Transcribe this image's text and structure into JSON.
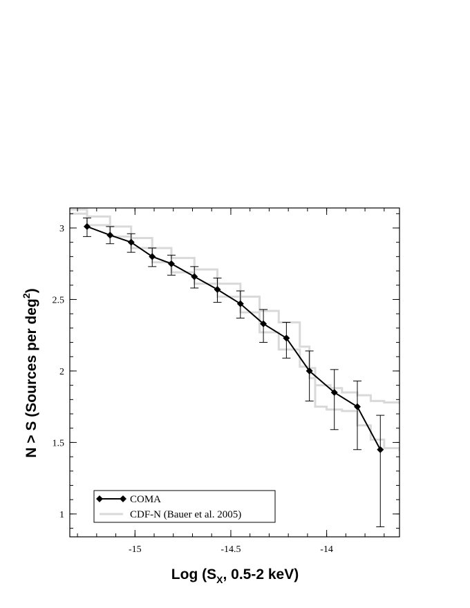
{
  "chart_data": {
    "type": "line",
    "xlabel": "Log (S",
    "xlabel_sub": "X",
    "xlabel_rest": ", 0.5-2 keV)",
    "ylabel": "N > S (Sources per deg",
    "ylabel_sup": "2",
    "ylabel_rest": ")",
    "xlim": [
      -15.34,
      -13.62
    ],
    "ylim": [
      0.84,
      3.14
    ],
    "x_ticks": [
      -15,
      -14.5,
      -14
    ],
    "x_tick_labels": [
      "-15",
      "-14.5",
      "-14"
    ],
    "y_ticks": [
      1,
      1.5,
      2,
      2.5,
      3
    ],
    "y_tick_labels": [
      "1",
      "1.5",
      "2",
      "2.5",
      "3"
    ],
    "grid": false,
    "legend_position": "bottom-left",
    "series": [
      {
        "name": "COMA",
        "color": "#000000",
        "marker": "diamond",
        "x": [
          -15.25,
          -15.13,
          -15.02,
          -14.91,
          -14.81,
          -14.69,
          -14.57,
          -14.45,
          -14.33,
          -14.21,
          -14.09,
          -13.96,
          -13.84,
          -13.72
        ],
        "y": [
          3.01,
          2.95,
          2.9,
          2.8,
          2.75,
          2.66,
          2.57,
          2.47,
          2.33,
          2.23,
          2.0,
          1.85,
          1.75,
          1.45
        ],
        "yerr_low": [
          0.07,
          0.06,
          0.07,
          0.07,
          0.08,
          0.08,
          0.09,
          0.1,
          0.13,
          0.14,
          0.21,
          0.26,
          0.3,
          0.54
        ],
        "yerr_high": [
          0.06,
          0.06,
          0.06,
          0.06,
          0.06,
          0.07,
          0.08,
          0.09,
          0.1,
          0.11,
          0.14,
          0.16,
          0.18,
          0.24
        ]
      },
      {
        "name": "CDF-N (Bauer et al. 2005)",
        "color": "#d9d9d9",
        "bands": [
          {
            "x": [
              -15.34,
              -15.25,
              -15.13,
              -15.02,
              -14.91,
              -14.81,
              -14.69,
              -14.57,
              -14.45,
              -14.35,
              -14.25,
              -14.14,
              -14.09,
              -14.06,
              -13.98,
              -13.92,
              -13.84,
              -13.77,
              -13.7,
              -13.62
            ],
            "y": [
              3.13,
              3.08,
              3.01,
              2.93,
              2.86,
              2.79,
              2.71,
              2.61,
              2.52,
              2.42,
              2.34,
              2.17,
              2.02,
              1.9,
              1.88,
              1.85,
              1.83,
              1.79,
              1.78,
              1.77
            ]
          },
          {
            "x": [
              -15.34,
              -15.25,
              -15.13,
              -15.02,
              -14.91,
              -14.81,
              -14.69,
              -14.57,
              -14.45,
              -14.35,
              -14.25,
              -14.14,
              -14.09,
              -14.06,
              -14.0,
              -13.92,
              -13.84,
              -13.77,
              -13.7,
              -13.62
            ],
            "y": [
              3.1,
              3.02,
              2.94,
              2.86,
              2.76,
              2.69,
              2.61,
              2.52,
              2.41,
              2.27,
              2.15,
              2.03,
              1.95,
              1.75,
              1.73,
              1.72,
              1.62,
              1.52,
              1.46,
              1.44
            ]
          }
        ]
      }
    ]
  }
}
